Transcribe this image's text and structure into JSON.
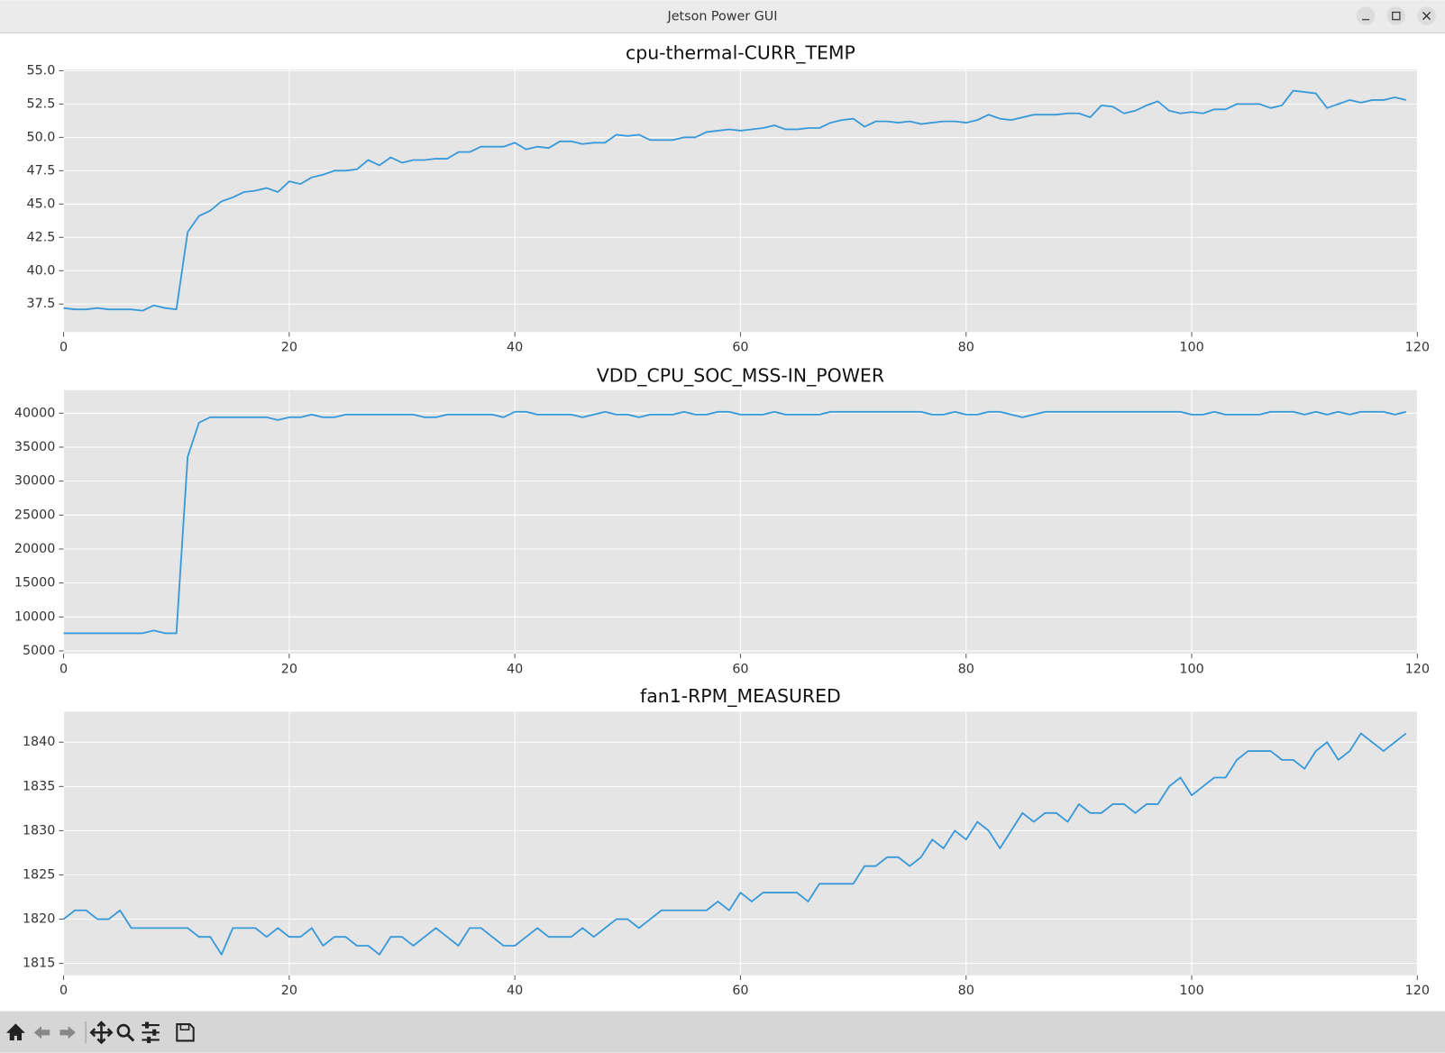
{
  "window": {
    "title": "Jetson Power GUI"
  },
  "chart_data": [
    {
      "type": "line",
      "title": "cpu-thermal-CURR_TEMP",
      "color": "#3a9ad9",
      "grid": true,
      "x": [
        0,
        1,
        2,
        3,
        4,
        5,
        6,
        7,
        8,
        9,
        10,
        11,
        12,
        13,
        14,
        15,
        16,
        17,
        18,
        19,
        20,
        21,
        22,
        23,
        24,
        25,
        26,
        27,
        28,
        29,
        30,
        31,
        32,
        33,
        34,
        35,
        36,
        37,
        38,
        39,
        40,
        41,
        42,
        43,
        44,
        45,
        46,
        47,
        48,
        49,
        50,
        51,
        52,
        53,
        54,
        55,
        56,
        57,
        58,
        59,
        60,
        61,
        62,
        63,
        64,
        65,
        66,
        67,
        68,
        69,
        70,
        71,
        72,
        73,
        74,
        75,
        76,
        77,
        78,
        79,
        80,
        81,
        82,
        83,
        84,
        85,
        86,
        87,
        88,
        89,
        90,
        91,
        92,
        93,
        94,
        95,
        96,
        97,
        98,
        99,
        100,
        101,
        102,
        103,
        104,
        105,
        106,
        107,
        108,
        109,
        110,
        111,
        112,
        113,
        114,
        115,
        116,
        117,
        118,
        119
      ],
      "values": [
        37.2,
        37.1,
        37.1,
        37.2,
        37.1,
        37.1,
        37.1,
        37.0,
        37.4,
        37.2,
        37.1,
        42.9,
        44.1,
        44.5,
        45.2,
        45.5,
        45.9,
        46.0,
        46.2,
        45.9,
        46.7,
        46.5,
        47.0,
        47.2,
        47.5,
        47.5,
        47.6,
        48.3,
        47.9,
        48.5,
        48.1,
        48.3,
        48.3,
        48.4,
        48.4,
        48.9,
        48.9,
        49.3,
        49.3,
        49.3,
        49.6,
        49.1,
        49.3,
        49.2,
        49.7,
        49.7,
        49.5,
        49.6,
        49.6,
        50.2,
        50.1,
        50.2,
        49.8,
        49.8,
        49.8,
        50.0,
        50.0,
        50.4,
        50.5,
        50.6,
        50.5,
        50.6,
        50.7,
        50.9,
        50.6,
        50.6,
        50.7,
        50.7,
        51.1,
        51.3,
        51.4,
        50.8,
        51.2,
        51.2,
        51.1,
        51.2,
        51.0,
        51.1,
        51.2,
        51.2,
        51.1,
        51.3,
        51.7,
        51.4,
        51.3,
        51.5,
        51.7,
        51.7,
        51.7,
        51.8,
        51.8,
        51.5,
        52.4,
        52.3,
        51.8,
        52.0,
        52.4,
        52.7,
        52.0,
        51.8,
        51.9,
        51.8,
        52.1,
        52.1,
        52.5,
        52.5,
        52.5,
        52.2,
        52.4,
        53.5,
        53.4,
        53.3,
        52.2,
        52.5,
        52.8,
        52.6,
        52.8,
        52.8,
        53.0,
        52.8
      ],
      "xlim": [
        0,
        120
      ],
      "xticks": [
        0,
        20,
        40,
        60,
        80,
        100,
        120
      ],
      "ylim": [
        35.4,
        55.1
      ],
      "yticks": [
        37.5,
        {
          "value": 40,
          "label": "40.0"
        },
        42.5,
        {
          "value": 45,
          "label": "45.0"
        },
        47.5,
        {
          "value": 50,
          "label": "50.0"
        },
        52.5,
        {
          "value": 55,
          "label": "55.0"
        }
      ]
    },
    {
      "type": "line",
      "title": "VDD_CPU_SOC_MSS-IN_POWER",
      "color": "#3a9ad9",
      "grid": true,
      "x": [
        0,
        1,
        2,
        3,
        4,
        5,
        6,
        7,
        8,
        9,
        10,
        11,
        12,
        13,
        14,
        15,
        16,
        17,
        18,
        19,
        20,
        21,
        22,
        23,
        24,
        25,
        26,
        27,
        28,
        29,
        30,
        31,
        32,
        33,
        34,
        35,
        36,
        37,
        38,
        39,
        40,
        41,
        42,
        43,
        44,
        45,
        46,
        47,
        48,
        49,
        50,
        51,
        52,
        53,
        54,
        55,
        56,
        57,
        58,
        59,
        60,
        61,
        62,
        63,
        64,
        65,
        66,
        67,
        68,
        69,
        70,
        71,
        72,
        73,
        74,
        75,
        76,
        77,
        78,
        79,
        80,
        81,
        82,
        83,
        84,
        85,
        86,
        87,
        88,
        89,
        90,
        91,
        92,
        93,
        94,
        95,
        96,
        97,
        98,
        99,
        100,
        101,
        102,
        103,
        104,
        105,
        106,
        107,
        108,
        109,
        110,
        111,
        112,
        113,
        114,
        115,
        116,
        117,
        118,
        119
      ],
      "values": [
        7600,
        7600,
        7600,
        7600,
        7600,
        7600,
        7600,
        7600,
        8000,
        7600,
        7600,
        33600,
        38600,
        39400,
        39400,
        39400,
        39400,
        39400,
        39400,
        39000,
        39400,
        39400,
        39800,
        39400,
        39400,
        39800,
        39800,
        39800,
        39800,
        39800,
        39800,
        39800,
        39400,
        39400,
        39800,
        39800,
        39800,
        39800,
        39800,
        39400,
        40200,
        40200,
        39800,
        39800,
        39800,
        39800,
        39400,
        39800,
        40200,
        39800,
        39800,
        39400,
        39800,
        39800,
        39800,
        40200,
        39800,
        39800,
        40200,
        40200,
        39800,
        39800,
        39800,
        40200,
        39800,
        39800,
        39800,
        39800,
        40200,
        40200,
        40200,
        40200,
        40200,
        40200,
        40200,
        40200,
        40200,
        39800,
        39800,
        40200,
        39800,
        39800,
        40200,
        40200,
        39800,
        39400,
        39800,
        40200,
        40200,
        40200,
        40200,
        40200,
        40200,
        40200,
        40200,
        40200,
        40200,
        40200,
        40200,
        40200,
        39800,
        39800,
        40200,
        39800,
        39800,
        39800,
        39800,
        40200,
        40200,
        40200,
        39800,
        40200,
        39800,
        40200,
        39800,
        40200,
        40200,
        40200,
        39800,
        40200
      ],
      "xlim": [
        0,
        120
      ],
      "xticks": [
        0,
        20,
        40,
        60,
        80,
        100,
        120
      ],
      "ylim": [
        4590,
        43400
      ],
      "yticks": [
        5000,
        10000,
        15000,
        20000,
        25000,
        30000,
        35000,
        40000
      ]
    },
    {
      "type": "line",
      "title": "fan1-RPM_MEASURED",
      "color": "#3a9ad9",
      "grid": true,
      "x": [
        0,
        1,
        2,
        3,
        4,
        5,
        6,
        7,
        8,
        9,
        10,
        11,
        12,
        13,
        14,
        15,
        16,
        17,
        18,
        19,
        20,
        21,
        22,
        23,
        24,
        25,
        26,
        27,
        28,
        29,
        30,
        31,
        32,
        33,
        34,
        35,
        36,
        37,
        38,
        39,
        40,
        41,
        42,
        43,
        44,
        45,
        46,
        47,
        48,
        49,
        50,
        51,
        52,
        53,
        54,
        55,
        56,
        57,
        58,
        59,
        60,
        61,
        62,
        63,
        64,
        65,
        66,
        67,
        68,
        69,
        70,
        71,
        72,
        73,
        74,
        75,
        76,
        77,
        78,
        79,
        80,
        81,
        82,
        83,
        84,
        85,
        86,
        87,
        88,
        89,
        90,
        91,
        92,
        93,
        94,
        95,
        96,
        97,
        98,
        99,
        100,
        101,
        102,
        103,
        104,
        105,
        106,
        107,
        108,
        109,
        110,
        111,
        112,
        113,
        114,
        115,
        116,
        117,
        118,
        119
      ],
      "values": [
        1820,
        1821,
        1821,
        1820,
        1820,
        1821,
        1819,
        1819,
        1819,
        1819,
        1819,
        1819,
        1818,
        1818,
        1816,
        1819,
        1819,
        1819,
        1818,
        1819,
        1818,
        1818,
        1819,
        1817,
        1818,
        1818,
        1817,
        1817,
        1816,
        1818,
        1818,
        1817,
        1818,
        1819,
        1818,
        1817,
        1819,
        1819,
        1818,
        1817,
        1817,
        1818,
        1819,
        1818,
        1818,
        1818,
        1819,
        1818,
        1819,
        1820,
        1820,
        1819,
        1820,
        1821,
        1821,
        1821,
        1821,
        1821,
        1822,
        1821,
        1823,
        1822,
        1823,
        1823,
        1823,
        1823,
        1822,
        1824,
        1824,
        1824,
        1824,
        1826,
        1826,
        1827,
        1827,
        1826,
        1827,
        1829,
        1828,
        1830,
        1829,
        1831,
        1830,
        1828,
        1830,
        1832,
        1831,
        1832,
        1832,
        1831,
        1833,
        1832,
        1832,
        1833,
        1833,
        1832,
        1833,
        1833,
        1835,
        1836,
        1834,
        1835,
        1836,
        1836,
        1838,
        1839,
        1839,
        1839,
        1838,
        1838,
        1837,
        1839,
        1840,
        1838,
        1839,
        1841,
        1840,
        1839,
        1840,
        1841
      ],
      "xlim": [
        0,
        120
      ],
      "xticks": [
        0,
        20,
        40,
        60,
        80,
        100,
        120
      ],
      "ylim": [
        1813.65,
        1843.44
      ],
      "yticks": [
        1815,
        1820,
        1825,
        1830,
        1835,
        1840
      ]
    }
  ]
}
